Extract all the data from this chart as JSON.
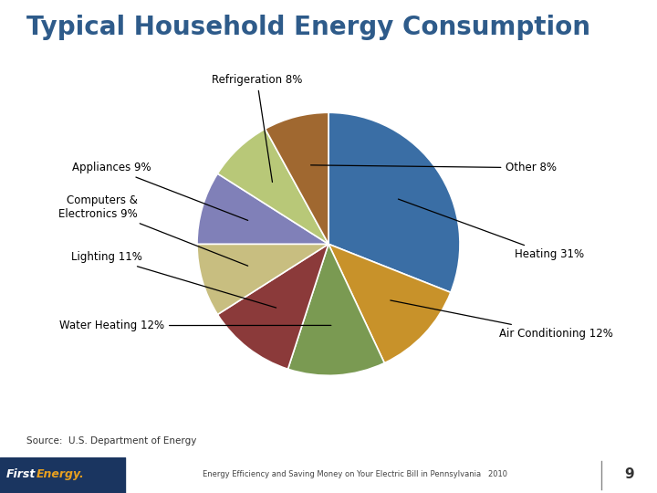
{
  "title": "Typical Household Energy Consumption",
  "title_color": "#2E5B8A",
  "title_fontsize": 20,
  "background_color": "#FFFFFF",
  "slices": [
    {
      "label": "Heating 31%",
      "value": 31,
      "color": "#3A6EA5"
    },
    {
      "label": "Air Conditioning 12%",
      "value": 12,
      "color": "#C8922A"
    },
    {
      "label": "Water Heating 12%",
      "value": 12,
      "color": "#7A9A52"
    },
    {
      "label": "Lighting 11%",
      "value": 11,
      "color": "#8B3A3A"
    },
    {
      "label": "Computers &\nElectronics 9%",
      "value": 9,
      "color": "#C8BE80"
    },
    {
      "label": "Appliances 9%",
      "value": 9,
      "color": "#8080B8"
    },
    {
      "label": "Refrigeration 8%",
      "value": 8,
      "color": "#B8C878"
    },
    {
      "label": "Other 8%",
      "value": 8,
      "color": "#A06830"
    }
  ],
  "source_text": "Source:  U.S. Department of Energy",
  "footer_text": "Energy Efficiency and Saving Money on Your Electric Bill in Pennsylvania   2010",
  "footer_page": "9",
  "footer_bg": "#C8B88A",
  "footer_left_bg": "#1A3560"
}
